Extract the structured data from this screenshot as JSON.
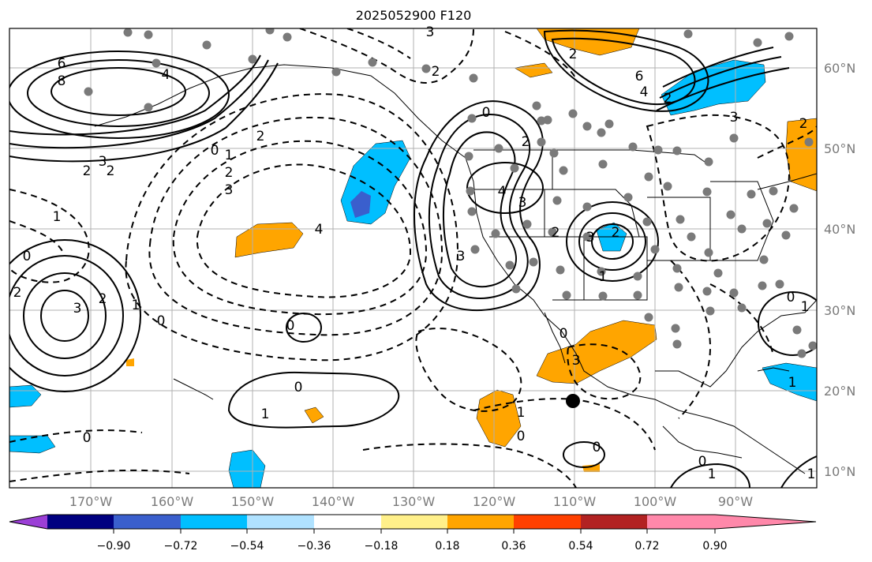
{
  "title": "2025052900 F120",
  "latitude_labels": [
    "60°N",
    "50°N",
    "40°N",
    "30°N",
    "20°N",
    "10°N"
  ],
  "longitude_labels": [
    "170°W",
    "160°W",
    "150°W",
    "140°W",
    "130°W",
    "120°W",
    "110°W",
    "100°W",
    "90°W"
  ],
  "colorbar": {
    "ticks": [
      "−0.90",
      "−0.72",
      "−0.54",
      "−0.36",
      "−0.18",
      "0.18",
      "0.36",
      "0.54",
      "0.72",
      "0.90"
    ],
    "colors": [
      "#9b3fd6",
      "#000080",
      "#3a5fcd",
      "#00bfff",
      "#b0e2ff",
      "#ffffff",
      "#fff08a",
      "#ffa500",
      "#ff4000",
      "#b22222",
      "#ff88aa"
    ]
  },
  "contour_labels": [
    "6",
    "8",
    "4",
    "3",
    "2",
    "2",
    "0",
    "1",
    "2",
    "3",
    "3",
    "2",
    "1",
    "0",
    "1",
    "0",
    "2",
    "3",
    "0",
    "1",
    "0",
    "2",
    "3",
    "2",
    "4",
    "0",
    "2",
    "2",
    "3",
    "4",
    "3",
    "2",
    "1",
    "2",
    "3",
    "6",
    "4",
    "2",
    "3",
    "0",
    "0",
    "1",
    "1",
    "0",
    "1",
    "0",
    "0",
    "1",
    "1",
    "0",
    "2"
  ],
  "marker": "black-dot"
}
